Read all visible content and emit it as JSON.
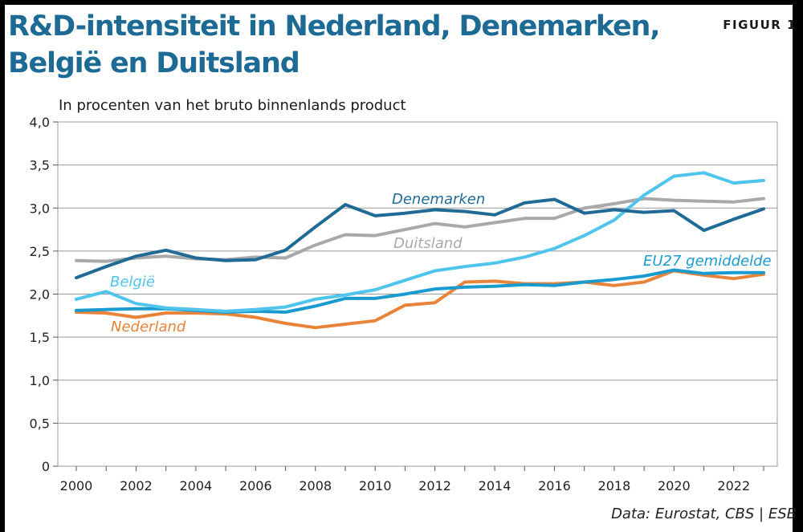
{
  "header": {
    "title": "R&D-intensiteit in Nederland, Denemarken, België en Duitsland",
    "figure_label": "FIGUUR 1",
    "source": "Data: Eurostat, CBS | ESB"
  },
  "chart_data": {
    "type": "line",
    "subtitle": "In procenten van het bruto binnenlands product",
    "title": "R&D-intensiteit in Nederland, Denemarken, België en Duitsland",
    "xlabel": "",
    "ylabel": "In procenten van het bruto binnenlands product",
    "xlim": [
      2000,
      2023
    ],
    "ylim": [
      0,
      4
    ],
    "grid": true,
    "x": [
      2000,
      2001,
      2002,
      2003,
      2004,
      2005,
      2006,
      2007,
      2008,
      2009,
      2010,
      2011,
      2012,
      2013,
      2014,
      2015,
      2016,
      2017,
      2018,
      2019,
      2020,
      2021,
      2022,
      2023
    ],
    "x_ticks": [
      2000,
      2002,
      2004,
      2006,
      2008,
      2010,
      2012,
      2014,
      2016,
      2018,
      2020,
      2022
    ],
    "y_ticks": [
      0,
      0.5,
      1.0,
      1.5,
      2.0,
      2.5,
      3.0,
      3.5,
      4.0
    ],
    "y_tick_labels": [
      "0",
      "0,5",
      "1,0",
      "1,5",
      "2,0",
      "2,5",
      "3,0",
      "3,5",
      "4,0"
    ],
    "series": [
      {
        "name": "Duitsland",
        "color": "#a9a8aa",
        "values": [
          2.39,
          2.38,
          2.42,
          2.44,
          2.41,
          2.4,
          2.43,
          2.42,
          2.57,
          2.69,
          2.68,
          2.75,
          2.82,
          2.78,
          2.83,
          2.88,
          2.88,
          3.0,
          3.05,
          3.11,
          3.09,
          3.08,
          3.07,
          3.11
        ]
      },
      {
        "name": "Nederland",
        "color": "#e8843a",
        "values": [
          1.79,
          1.78,
          1.73,
          1.78,
          1.78,
          1.77,
          1.73,
          1.66,
          1.61,
          1.65,
          1.69,
          1.87,
          1.9,
          2.14,
          2.15,
          2.12,
          2.12,
          2.14,
          2.1,
          2.14,
          2.27,
          2.22,
          2.18,
          2.23
        ]
      },
      {
        "name": "EU27 gemiddelde",
        "color": "#1a9bd0",
        "values": [
          1.81,
          1.82,
          1.83,
          1.83,
          1.81,
          1.79,
          1.8,
          1.79,
          1.86,
          1.95,
          1.95,
          2.0,
          2.06,
          2.08,
          2.09,
          2.11,
          2.1,
          2.14,
          2.17,
          2.21,
          2.28,
          2.24,
          2.25,
          2.25
        ]
      },
      {
        "name": "België",
        "color": "#4fc4ec",
        "values": [
          1.94,
          2.03,
          1.89,
          1.84,
          1.82,
          1.8,
          1.82,
          1.85,
          1.94,
          1.99,
          2.05,
          2.16,
          2.27,
          2.32,
          2.36,
          2.43,
          2.53,
          2.68,
          2.86,
          3.15,
          3.37,
          3.41,
          3.29,
          3.32
        ]
      },
      {
        "name": "Denemarken",
        "color": "#1f6b96",
        "values": [
          2.19,
          2.32,
          2.44,
          2.51,
          2.42,
          2.39,
          2.4,
          2.51,
          2.78,
          3.04,
          2.91,
          2.94,
          2.98,
          2.96,
          2.92,
          3.06,
          3.1,
          2.94,
          2.98,
          2.95,
          2.97,
          2.74,
          2.87,
          2.99
        ]
      }
    ],
    "annotations": [
      {
        "series": "Denemarken",
        "text": "Denemarken"
      },
      {
        "series": "Duitsland",
        "text": "Duitsland"
      },
      {
        "series": "België",
        "text": "België"
      },
      {
        "series": "Nederland",
        "text": "Nederland"
      },
      {
        "series": "EU27 gemiddelde",
        "text": "EU27 gemiddelde"
      }
    ]
  }
}
